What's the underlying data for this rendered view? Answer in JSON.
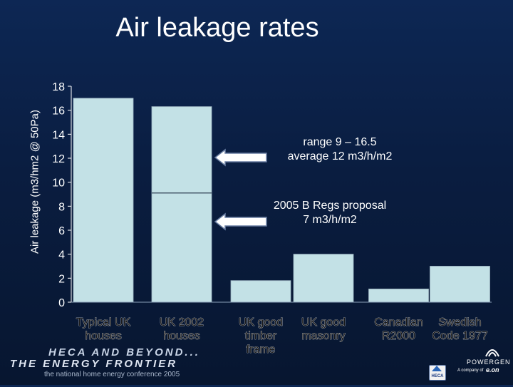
{
  "title": "Air leakage rates",
  "chart_data": {
    "type": "bar",
    "ylabel": "Air leakage (m3/hm2 @ 50Pa)",
    "ylim": [
      0,
      18
    ],
    "yticks": [
      "0",
      "2",
      "4",
      "6",
      "8",
      "10",
      "12",
      "14",
      "16",
      "18"
    ],
    "grid": false,
    "groups": [
      {
        "bars": [
          {
            "label": "Typical UK houses",
            "value": 17
          },
          {
            "label": "UK 2002 houses",
            "value": 16.3,
            "marker": 9.1
          }
        ]
      },
      {
        "bars": [
          {
            "label": "UK good timber frame",
            "value": 1.8
          },
          {
            "label": "UK good masonry",
            "value": 4
          }
        ]
      },
      {
        "bars": [
          {
            "label": "Canadian R2000",
            "value": 1.1
          },
          {
            "label": "Swedish Code 1977",
            "value": 3
          }
        ]
      }
    ],
    "x_labels": [
      [
        "Typical UK",
        "houses"
      ],
      [
        "UK 2002",
        "houses"
      ],
      [
        "UK good",
        "timber",
        "frame"
      ],
      [
        "UK good",
        "masonry"
      ],
      [
        "Canadian",
        "R2000"
      ],
      [
        "Swedish",
        "Code 1977"
      ]
    ],
    "annotations": [
      {
        "lines": [
          "range 9 – 16.5",
          "average  12 m3/h/m2"
        ],
        "points_to": 12
      },
      {
        "lines": [
          "2005 B Regs proposal",
          "7 m3/h/m2"
        ],
        "points_to": 7
      }
    ],
    "bar_color": "#c3e1e6"
  },
  "footer": {
    "line1": "HECA AND BEYOND...",
    "line2": "THE ENERGY FRONTIER",
    "line3": "the national home energy conference 2005",
    "badge": "HECA",
    "sponsor": "POWERGEN",
    "sponsor_sub": "A company of",
    "sponsor_parent": "e.on"
  }
}
